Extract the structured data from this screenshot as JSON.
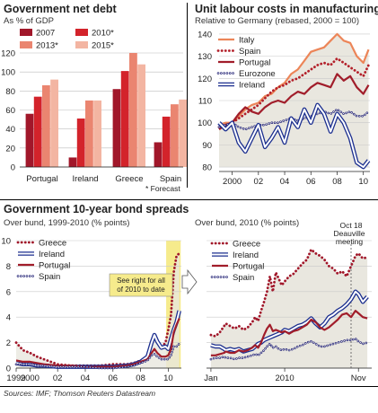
{
  "texts": {
    "debt_title": "Government net debt",
    "debt_subtitle": "As % of GDP",
    "ulc_title": "Unit labour costs in manufacturing",
    "ulc_subtitle": "Relative to Germany (rebased, 2000 = 100)",
    "spreads_title": "Government 10-year bond spreads",
    "spreads_sub_left": "Over bund, 1999-2010 (% points)",
    "spreads_sub_right": "Over bund, 2010 (% points)",
    "callout": "See right for all of 2010 to date",
    "event_label_1": "Oct 18",
    "event_label_2": "Deauville",
    "event_label_3": "meeting",
    "forecast_note": "* Forecast",
    "source": "Sources: IMF; Thomson Reuters Datastream"
  },
  "colors": {
    "c2007": "#a1172a",
    "c2010": "#d3232b",
    "c2013": "#ea8570",
    "c2015": "#f3b5a2",
    "italy": "#ec8558",
    "spain": "#b3202a",
    "portugal": "#a11d2a",
    "eurozone": "#2a2a7a",
    "ireland": "#1c2f8f",
    "greece": "#a1172a",
    "highlight": "#f6eb8c",
    "area": "#e9e7df"
  },
  "chart_data": [
    {
      "type": "bar",
      "title": "Government net debt",
      "subtitle": "As % of GDP",
      "categories": [
        "Portugal",
        "Ireland",
        "Greece",
        "Spain"
      ],
      "series": [
        {
          "name": "2007",
          "values": [
            56,
            10,
            82,
            26
          ]
        },
        {
          "name": "2010*",
          "values": [
            74,
            51,
            101,
            53
          ]
        },
        {
          "name": "2013*",
          "values": [
            86,
            70,
            120,
            66
          ]
        },
        {
          "name": "2015*",
          "values": [
            92,
            70,
            108,
            71
          ]
        }
      ],
      "ylim": [
        0,
        120
      ],
      "yticks": [
        0,
        20,
        40,
        60,
        80,
        100,
        120
      ],
      "note": "* Forecast"
    },
    {
      "type": "line",
      "title": "Unit labour costs in manufacturing",
      "subtitle": "Relative to Germany (rebased, 2000 = 100)",
      "x": [
        1999.0,
        1999.5,
        2000.0,
        2000.5,
        2001.0,
        2001.5,
        2002.0,
        2002.5,
        2003.0,
        2003.5,
        2004.0,
        2004.5,
        2005.0,
        2005.5,
        2006.0,
        2006.5,
        2007.0,
        2007.5,
        2008.0,
        2008.5,
        2009.0,
        2009.5,
        2010.0,
        2010.4
      ],
      "series": [
        {
          "name": "Italy",
          "values": [
            99,
            100,
            100,
            103,
            106,
            108,
            109,
            112,
            113,
            116,
            118,
            122,
            124,
            128,
            132,
            133,
            134,
            137,
            140,
            137,
            136,
            130,
            127,
            133
          ]
        },
        {
          "name": "Spain",
          "values": [
            98,
            99,
            100,
            102,
            104,
            106,
            108,
            111,
            114,
            116,
            117,
            119,
            120,
            122,
            124,
            126,
            127,
            126,
            129,
            127,
            125,
            123,
            121,
            126
          ]
        },
        {
          "name": "Portugal",
          "values": [
            97,
            99,
            100,
            104,
            107,
            105,
            104,
            107,
            109,
            110,
            109,
            112,
            114,
            113,
            116,
            118,
            117,
            116,
            122,
            119,
            121,
            116,
            113,
            117
          ]
        },
        {
          "name": "Eurozone",
          "values": [
            98,
            99,
            100,
            98,
            97,
            98,
            99,
            99,
            100,
            100,
            101,
            102,
            101,
            102,
            103,
            104,
            105,
            104,
            106,
            104,
            105,
            103,
            103,
            105
          ]
        },
        {
          "name": "Ireland",
          "values": [
            100,
            97,
            100,
            91,
            87,
            93,
            99,
            89,
            93,
            98,
            91,
            102,
            98,
            106,
            100,
            108,
            104,
            96,
            104,
            100,
            93,
            82,
            80,
            83
          ]
        }
      ],
      "ylim": [
        78,
        142
      ],
      "yticks": [
        80,
        90,
        100,
        110,
        120,
        130,
        140
      ],
      "xtick_labels": [
        "2000",
        "02",
        "04",
        "06",
        "08",
        "10"
      ],
      "xtick_positions": [
        2000,
        2002,
        2004,
        2006,
        2008,
        2010
      ]
    },
    {
      "type": "line",
      "title": "Government 10-year bond spreads",
      "subtitle": "Over bund, 1999-2010 (% points)",
      "x": [
        1999.0,
        1999.5,
        2000.0,
        2000.5,
        2001.0,
        2002.0,
        2003.0,
        2004.0,
        2005.0,
        2006.0,
        2007.0,
        2007.5,
        2008.0,
        2008.5,
        2008.8,
        2009.0,
        2009.2,
        2009.5,
        2009.8,
        2010.0,
        2010.2,
        2010.4,
        2010.6,
        2010.8
      ],
      "series": [
        {
          "name": "Greece",
          "values": [
            2.0,
            1.4,
            1.2,
            0.9,
            0.7,
            0.3,
            0.2,
            0.2,
            0.2,
            0.3,
            0.3,
            0.4,
            0.6,
            0.8,
            1.8,
            2.7,
            2.2,
            1.6,
            2.0,
            3.0,
            4.2,
            7.5,
            8.8,
            9.0
          ]
        },
        {
          "name": "Ireland",
          "values": [
            0.4,
            0.3,
            0.3,
            0.2,
            0.2,
            0.1,
            0.1,
            0.1,
            0.1,
            0.1,
            0.2,
            0.3,
            0.5,
            0.9,
            2.0,
            2.6,
            2.1,
            1.6,
            1.7,
            1.5,
            2.3,
            3.0,
            3.6,
            4.5
          ]
        },
        {
          "name": "Portugal",
          "values": [
            0.6,
            0.5,
            0.5,
            0.4,
            0.3,
            0.2,
            0.2,
            0.1,
            0.1,
            0.1,
            0.2,
            0.3,
            0.5,
            0.7,
            1.2,
            1.5,
            1.2,
            0.9,
            0.9,
            1.0,
            1.5,
            2.8,
            3.4,
            3.9
          ]
        },
        {
          "name": "Spain",
          "values": [
            0.3,
            0.3,
            0.3,
            0.2,
            0.2,
            0.1,
            0.1,
            0.1,
            0.0,
            0.0,
            0.1,
            0.2,
            0.4,
            0.6,
            1.0,
            1.1,
            0.9,
            0.7,
            0.7,
            0.7,
            1.0,
            1.7,
            1.7,
            1.9
          ]
        }
      ],
      "ylim": [
        0,
        10
      ],
      "yticks": [
        0,
        2,
        4,
        6,
        8,
        10
      ],
      "xtick_labels": [
        "1999",
        "2000",
        "02",
        "04",
        "06",
        "08",
        "10"
      ],
      "xtick_positions": [
        1999,
        2000,
        2002,
        2004,
        2006,
        2008,
        2010
      ],
      "highlight_range": [
        2009.85,
        2010.9
      ]
    },
    {
      "type": "line",
      "subtitle": "Over bund, 2010 (% points)",
      "x": [
        0.0,
        0.3,
        0.6,
        0.9,
        1.0,
        1.3,
        1.6,
        1.9,
        2.2,
        2.5,
        2.8,
        3.0,
        3.2,
        3.4,
        3.6,
        3.8,
        4.0,
        4.2,
        4.4,
        4.6,
        4.8,
        5.0,
        5.3,
        5.6,
        5.9,
        6.2,
        6.5,
        6.8,
        7.1,
        7.4,
        7.7,
        8.0,
        8.3,
        8.6,
        8.9,
        9.2,
        9.5,
        9.8,
        10.0,
        10.3,
        10.6
      ],
      "series": [
        {
          "name": "Greece",
          "values": [
            2.6,
            2.5,
            2.8,
            3.3,
            3.5,
            3.3,
            3.1,
            3.3,
            3.0,
            3.2,
            3.6,
            4.0,
            3.7,
            4.5,
            5.2,
            6.0,
            7.2,
            6.0,
            7.5,
            7.0,
            6.5,
            6.8,
            7.2,
            7.4,
            7.8,
            8.2,
            8.5,
            9.3,
            9.0,
            8.8,
            8.5,
            8.0,
            7.8,
            7.4,
            7.6,
            7.2,
            8.0,
            8.8,
            9.0,
            8.6,
            8.7
          ]
        },
        {
          "name": "Ireland",
          "values": [
            1.8,
            1.7,
            1.7,
            1.5,
            1.4,
            1.5,
            1.4,
            1.5,
            1.3,
            1.4,
            1.5,
            1.7,
            1.9,
            2.0,
            2.2,
            2.3,
            2.4,
            2.5,
            2.6,
            2.7,
            2.8,
            3.0,
            2.9,
            3.1,
            3.3,
            3.4,
            3.6,
            3.9,
            3.5,
            3.2,
            3.5,
            4.0,
            4.2,
            4.5,
            4.7,
            5.0,
            5.4,
            6.0,
            5.8,
            5.2,
            5.6
          ]
        },
        {
          "name": "Portugal",
          "values": [
            1.0,
            1.0,
            1.1,
            1.2,
            1.3,
            1.2,
            1.2,
            1.4,
            1.3,
            1.4,
            1.6,
            1.8,
            1.6,
            2.0,
            2.6,
            3.1,
            3.4,
            2.9,
            3.0,
            2.9,
            2.8,
            2.9,
            2.7,
            2.9,
            3.0,
            3.2,
            3.4,
            3.8,
            3.6,
            3.2,
            3.0,
            3.2,
            3.5,
            3.8,
            4.2,
            4.3,
            4.0,
            4.5,
            4.3,
            4.0,
            3.9
          ]
        },
        {
          "name": "Spain",
          "values": [
            0.7,
            0.8,
            0.8,
            0.9,
            0.8,
            0.8,
            0.7,
            0.8,
            0.8,
            0.9,
            1.0,
            1.1,
            1.0,
            1.2,
            1.4,
            1.7,
            1.9,
            1.6,
            1.7,
            1.5,
            1.4,
            1.5,
            1.4,
            1.5,
            1.7,
            1.8,
            2.0,
            2.1,
            1.9,
            1.7,
            1.7,
            1.8,
            1.9,
            2.0,
            2.1,
            2.2,
            2.2,
            2.3,
            2.1,
            1.9,
            2.0
          ]
        }
      ],
      "ylim": [
        0,
        10
      ],
      "yticks": [
        0,
        2,
        4,
        6,
        8,
        10
      ],
      "xtick_labels": [
        "Jan",
        "2010",
        "Nov"
      ],
      "xtick_positions": [
        0.0,
        5.0,
        10.0
      ],
      "event_x": 9.5
    }
  ]
}
